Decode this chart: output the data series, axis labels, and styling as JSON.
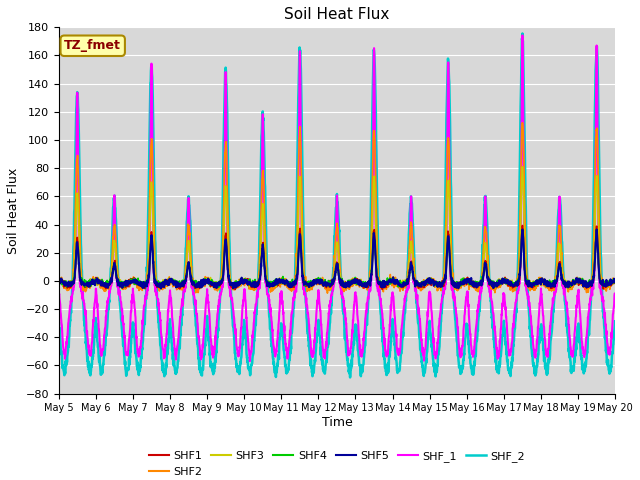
{
  "title": "Soil Heat Flux",
  "ylabel": "Soil Heat Flux",
  "xlabel": "Time",
  "ylim": [
    -80,
    180
  ],
  "yticks": [
    -80,
    -60,
    -40,
    -20,
    0,
    20,
    40,
    60,
    80,
    100,
    120,
    140,
    160,
    180
  ],
  "series_names": [
    "SHF1",
    "SHF2",
    "SHF3",
    "SHF4",
    "SHF5",
    "SHF_1",
    "SHF_2"
  ],
  "series_colors": [
    "#cc0000",
    "#ff8800",
    "#cccc00",
    "#00cc00",
    "#000099",
    "#ff00ff",
    "#00cccc"
  ],
  "series_linewidths": [
    1.2,
    1.2,
    1.2,
    1.2,
    1.5,
    1.5,
    1.8
  ],
  "tz_label": "TZ_fmet",
  "background_color": "#d8d8d8",
  "n_days": 15,
  "start_day": 5,
  "points_per_day": 144,
  "day_peak_amplitudes": [
    135,
    60,
    155,
    60,
    150,
    120,
    165,
    60,
    165,
    60,
    158,
    60,
    175,
    60,
    168
  ],
  "legend_ncol_row1": 6,
  "legend_ncol_row2": 1
}
